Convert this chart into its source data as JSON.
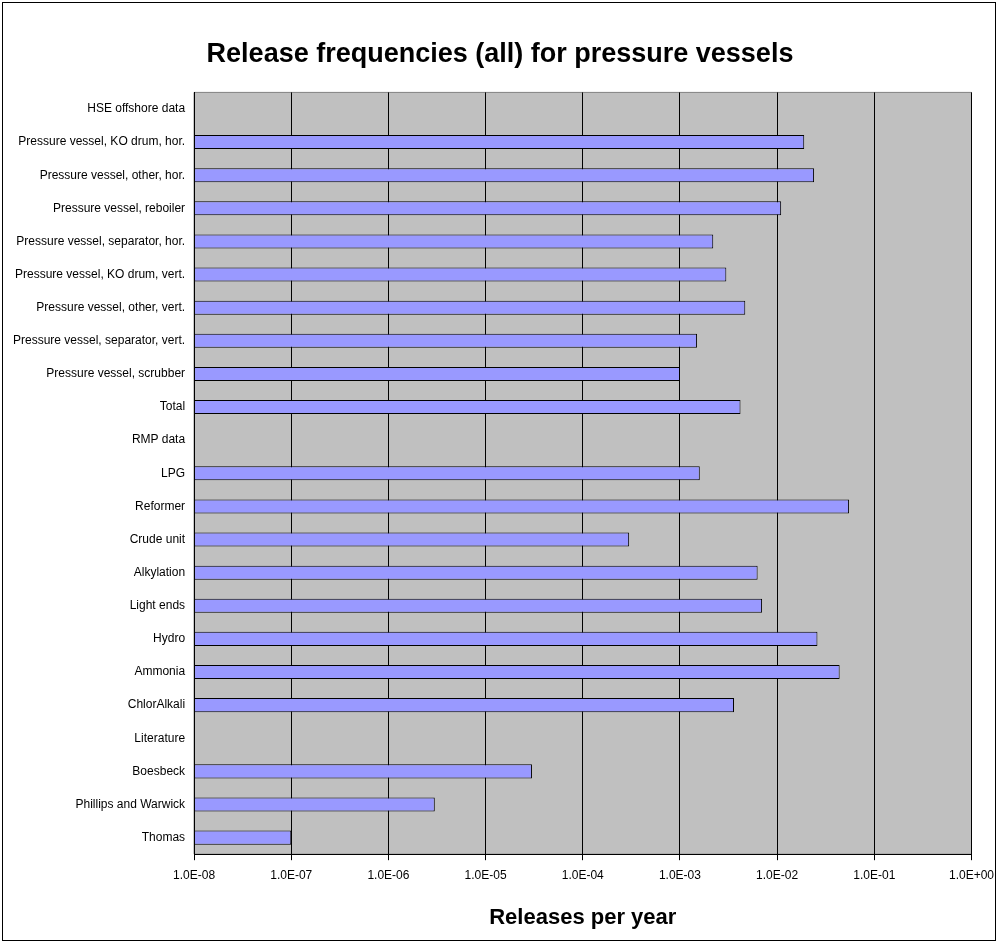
{
  "chart_data": {
    "type": "bar",
    "orientation": "horizontal",
    "title": "Release frequencies (all) for pressure vessels",
    "xlabel": "Releases per year",
    "categories": [
      "HSE offshore data",
      "Pressure vessel, KO drum, hor.",
      "Pressure vessel, other, hor.",
      "Pressure vessel, reboiler",
      "Pressure vessel, separator, hor.",
      "Pressure vessel, KO drum, vert.",
      "Pressure vessel, other, vert.",
      "Pressure vessel, separator, vert.",
      "Pressure vessel, scrubber",
      "Total",
      "RMP data",
      "LPG",
      "Reformer",
      "Crude unit",
      "Alkylation",
      "Light ends",
      "Hydro",
      "Ammonia",
      "ChlorAlkali",
      "Literature",
      "Boesbeck",
      "Phillips and Warwick",
      "Thomas"
    ],
    "values": [
      null,
      0.019,
      0.024,
      0.011,
      0.0022,
      0.003,
      0.0047,
      0.0015,
      0.001,
      0.0042,
      null,
      0.0016,
      0.055,
      0.0003,
      0.0063,
      0.007,
      0.026,
      0.044,
      0.0036,
      null,
      3e-05,
      3e-06,
      1e-07
    ],
    "color": "#9999ff",
    "log": "x",
    "xlim": [
      1e-08,
      1
    ],
    "xticks": [
      {
        "value": 1e-08,
        "label": "1.0E-08"
      },
      {
        "value": 1e-07,
        "label": "1.0E-07"
      },
      {
        "value": 1e-06,
        "label": "1.0E-06"
      },
      {
        "value": 1e-05,
        "label": "1.0E-05"
      },
      {
        "value": 0.0001,
        "label": "1.0E-04"
      },
      {
        "value": 0.001,
        "label": "1.0E-03"
      },
      {
        "value": 0.01,
        "label": "1.0E-02"
      },
      {
        "value": 0.1,
        "label": "1.0E-01"
      },
      {
        "value": 1,
        "label": "1.0E+00"
      }
    ],
    "grid": "x",
    "legend": false
  }
}
